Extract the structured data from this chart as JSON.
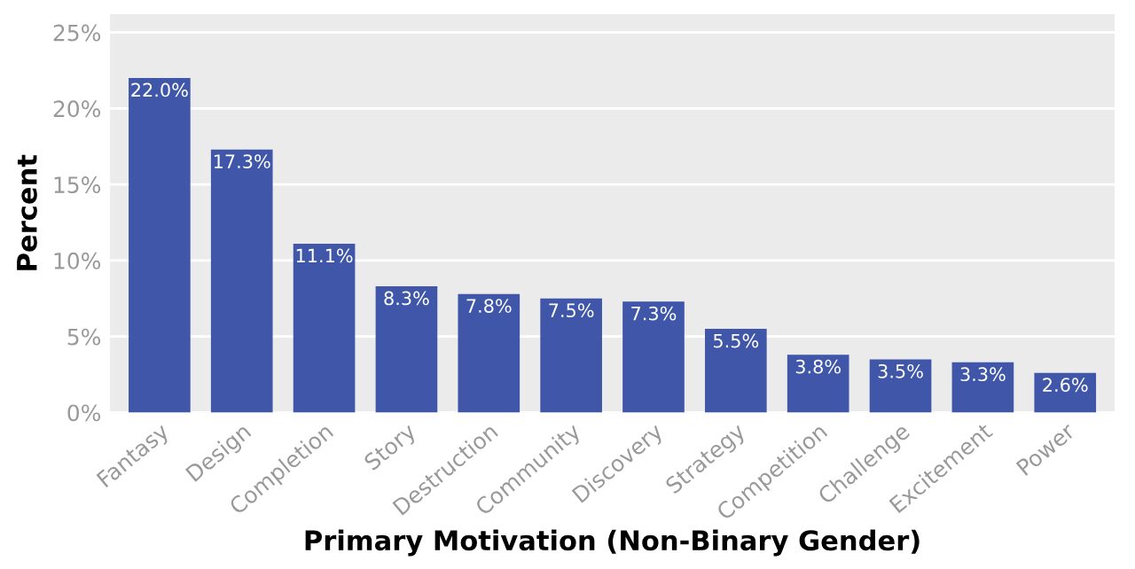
{
  "chart_data": {
    "type": "bar",
    "xlabel": "Primary Motivation (Non-Binary Gender)",
    "ylabel": "Percent",
    "categories": [
      "Fantasy",
      "Design",
      "Completion",
      "Story",
      "Destruction",
      "Community",
      "Discovery",
      "Strategy",
      "Competition",
      "Challenge",
      "Excitement",
      "Power"
    ],
    "values": [
      22.0,
      17.3,
      11.1,
      8.3,
      7.8,
      7.5,
      7.3,
      5.5,
      3.8,
      3.5,
      3.3,
      2.6
    ],
    "value_labels": [
      "22.0%",
      "17.3%",
      "11.1%",
      "8.3%",
      "7.8%",
      "7.5%",
      "7.3%",
      "5.5%",
      "3.8%",
      "3.5%",
      "3.3%",
      "2.6%"
    ],
    "color": "#3f56a9",
    "ylim": [
      0,
      26.2
    ],
    "yticks": [
      {
        "value": 0,
        "label": "0%"
      },
      {
        "value": 5,
        "label": "5%"
      },
      {
        "value": 10,
        "label": "10%"
      },
      {
        "value": 15,
        "label": "15%"
      },
      {
        "value": 20,
        "label": "20%"
      },
      {
        "value": 25,
        "label": "25%"
      }
    ],
    "grid": "y"
  }
}
